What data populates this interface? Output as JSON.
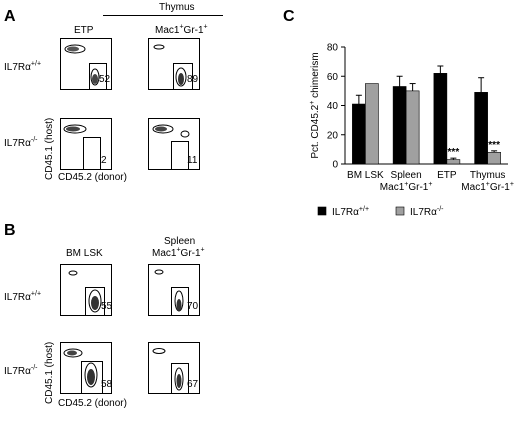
{
  "panels": {
    "a": {
      "letter": "A",
      "header": "Thymus",
      "col1": "ETP",
      "col2_main": "Mac1",
      "col2_sup1": "+",
      "col2_mid": "Gr-1",
      "col2_sup2": "+",
      "row1_main": "IL7Rα",
      "row1_sup": "+/+",
      "row2_main": "IL7Rα",
      "row2_sup": "-/-",
      "ylabel": "CD45.1 (host)",
      "xlabel": "CD45.2 (donor)",
      "pcts": [
        "52",
        "89",
        "2",
        "11"
      ]
    },
    "b": {
      "letter": "B",
      "col1": "BM LSK",
      "col2_line1": "Spleen",
      "col2_main": "Mac1",
      "col2_sup1": "+",
      "col2_mid": "Gr-1",
      "col2_sup2": "+",
      "row1_main": "IL7Rα",
      "row1_sup": "+/+",
      "row2_main": "IL7Rα",
      "row2_sup": "-/-",
      "ylabel": "CD45.1 (host)",
      "xlabel": "CD45.2 (donor)",
      "pcts": [
        "55",
        "70",
        "58",
        "67"
      ]
    },
    "c": {
      "letter": "C"
    }
  },
  "chart_data": {
    "type": "bar",
    "categories": [
      "BM LSK",
      "Spleen Mac1+Gr-1+",
      "ETP",
      "Thymus Mac1+Gr-1+"
    ],
    "category_lines": [
      [
        "BM LSK"
      ],
      [
        "Spleen",
        "Mac1+Gr-1+"
      ],
      [
        "ETP"
      ],
      [
        "Thymus",
        "Mac1+Gr-1+"
      ]
    ],
    "series": [
      {
        "name": "IL7Rα+/+",
        "color": "#000000",
        "values": [
          41,
          53,
          62,
          49
        ],
        "errors": [
          6,
          7,
          5,
          10
        ]
      },
      {
        "name": "IL7Rα-/-",
        "color": "#a0a0a0",
        "values": [
          55,
          50,
          3,
          8
        ],
        "errors": [
          0,
          5,
          1,
          1
        ]
      }
    ],
    "significance": [
      "",
      "",
      "***",
      "***"
    ],
    "ylabel": "Pct. CD45.2+ chimerism",
    "yticks": [
      0,
      20,
      40,
      60,
      80
    ],
    "ylim": [
      0,
      80
    ],
    "legend_placement": "bottom"
  }
}
